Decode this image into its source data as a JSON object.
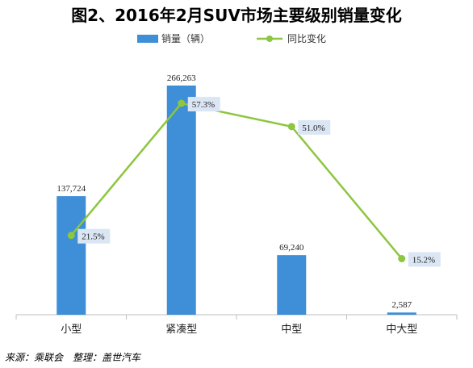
{
  "chart_data": {
    "type": "bar",
    "title": "图2、2016年2月SUV市场主要级别销量变化",
    "categories": [
      "小型",
      "紧凑型",
      "中型",
      "中大型"
    ],
    "series": [
      {
        "name": "销量（辆）",
        "type": "bar",
        "color": "#3E8ED8",
        "values": [
          137724,
          266263,
          69240,
          2587
        ],
        "labels": [
          "137,724",
          "266,263",
          "69,240",
          "2,587"
        ]
      },
      {
        "name": "同比变化",
        "type": "line",
        "color": "#8DC63F",
        "values": [
          21.5,
          57.3,
          51.0,
          15.2
        ],
        "labels": [
          "21.5%",
          "57.3%",
          "51.0%",
          "15.2%"
        ]
      }
    ],
    "ylim_bar": [
      0,
      300000
    ],
    "ylim_line": [
      0,
      70
    ],
    "legend_position": "top-center",
    "grid": false
  },
  "footer": {
    "source": "来源：乘联会　整理：盖世汽车"
  }
}
